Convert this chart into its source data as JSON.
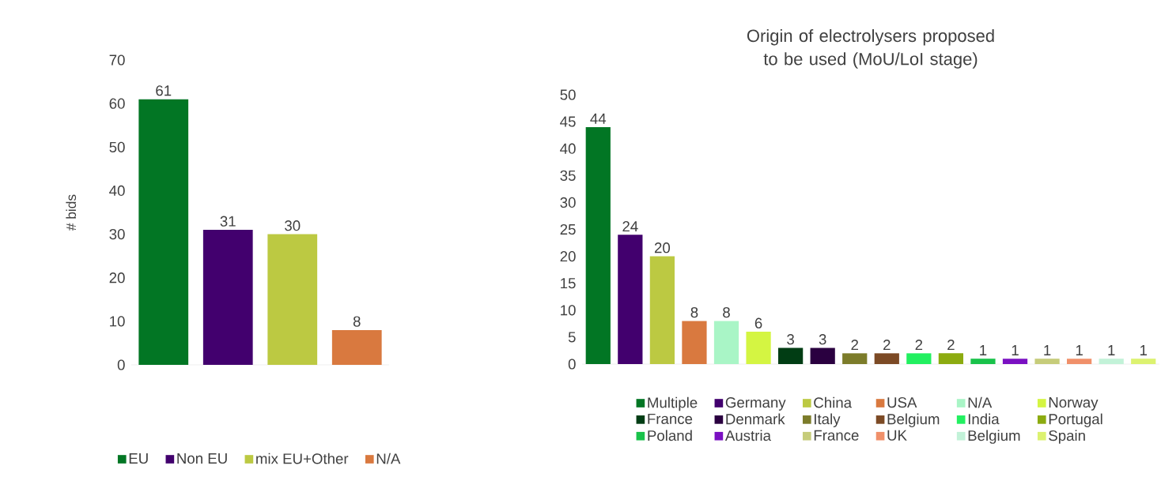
{
  "chart_data": [
    {
      "type": "bar",
      "ylabel": "# bids",
      "categories": [
        null
      ],
      "series": [
        {
          "name": "EU",
          "color": "#027624",
          "values": [
            61
          ]
        },
        {
          "name": "Non EU",
          "color": "#42006e",
          "values": [
            31
          ]
        },
        {
          "name": "mix EU+Other",
          "color": "#bcc942",
          "values": [
            30
          ]
        },
        {
          "name": "N/A",
          "color": "#d9793f",
          "values": [
            8
          ]
        }
      ],
      "ylim": [
        0,
        70
      ],
      "yticks": [
        0,
        10,
        20,
        30,
        40,
        50,
        60,
        70
      ],
      "data_labels": true,
      "legend": "bottom",
      "tick_labels": "y"
    },
    {
      "type": "bar",
      "title": "Origin of electrolysers proposed to be used (MoU/LoI stage)",
      "categories": [
        null
      ],
      "series": [
        {
          "name": "Multiple",
          "color": "#027624",
          "values": [
            44
          ]
        },
        {
          "name": "Germany",
          "color": "#42006e",
          "values": [
            24
          ]
        },
        {
          "name": "China",
          "color": "#bcc942",
          "values": [
            20
          ]
        },
        {
          "name": "USA",
          "color": "#d9793f",
          "values": [
            8
          ]
        },
        {
          "name": "N/A",
          "color": "#a9f5c6",
          "values": [
            8
          ]
        },
        {
          "name": "Norway",
          "color": "#d4f542",
          "values": [
            6
          ]
        },
        {
          "name": "France",
          "color": "#013d14",
          "values": [
            3
          ]
        },
        {
          "name": "Denmark",
          "color": "#2a0040",
          "values": [
            3
          ]
        },
        {
          "name": "Italy",
          "color": "#7c7c2a",
          "values": [
            2
          ]
        },
        {
          "name": "Belgium",
          "color": "#7c4a25",
          "values": [
            2
          ]
        },
        {
          "name": "India",
          "color": "#22f060",
          "values": [
            2
          ]
        },
        {
          "name": "Portugal",
          "color": "#8cab10",
          "values": [
            2
          ]
        },
        {
          "name": "Poland",
          "color": "#19c24a",
          "values": [
            1
          ]
        },
        {
          "name": "Austria",
          "color": "#7a10c2",
          "values": [
            1
          ]
        },
        {
          "name": "France",
          "color": "#c6cc7a",
          "values": [
            1
          ]
        },
        {
          "name": "UK",
          "color": "#f0906a",
          "values": [
            1
          ]
        },
        {
          "name": "Belgium",
          "color": "#c2f2d8",
          "values": [
            1
          ]
        },
        {
          "name": "Spain",
          "color": "#dcf270",
          "values": [
            1
          ]
        }
      ],
      "ylim": [
        0,
        50
      ],
      "yticks": [
        0,
        5,
        10,
        15,
        20,
        25,
        30,
        35,
        40,
        45,
        50
      ],
      "data_labels": true,
      "legend": "bottom",
      "tick_labels": "y"
    }
  ]
}
